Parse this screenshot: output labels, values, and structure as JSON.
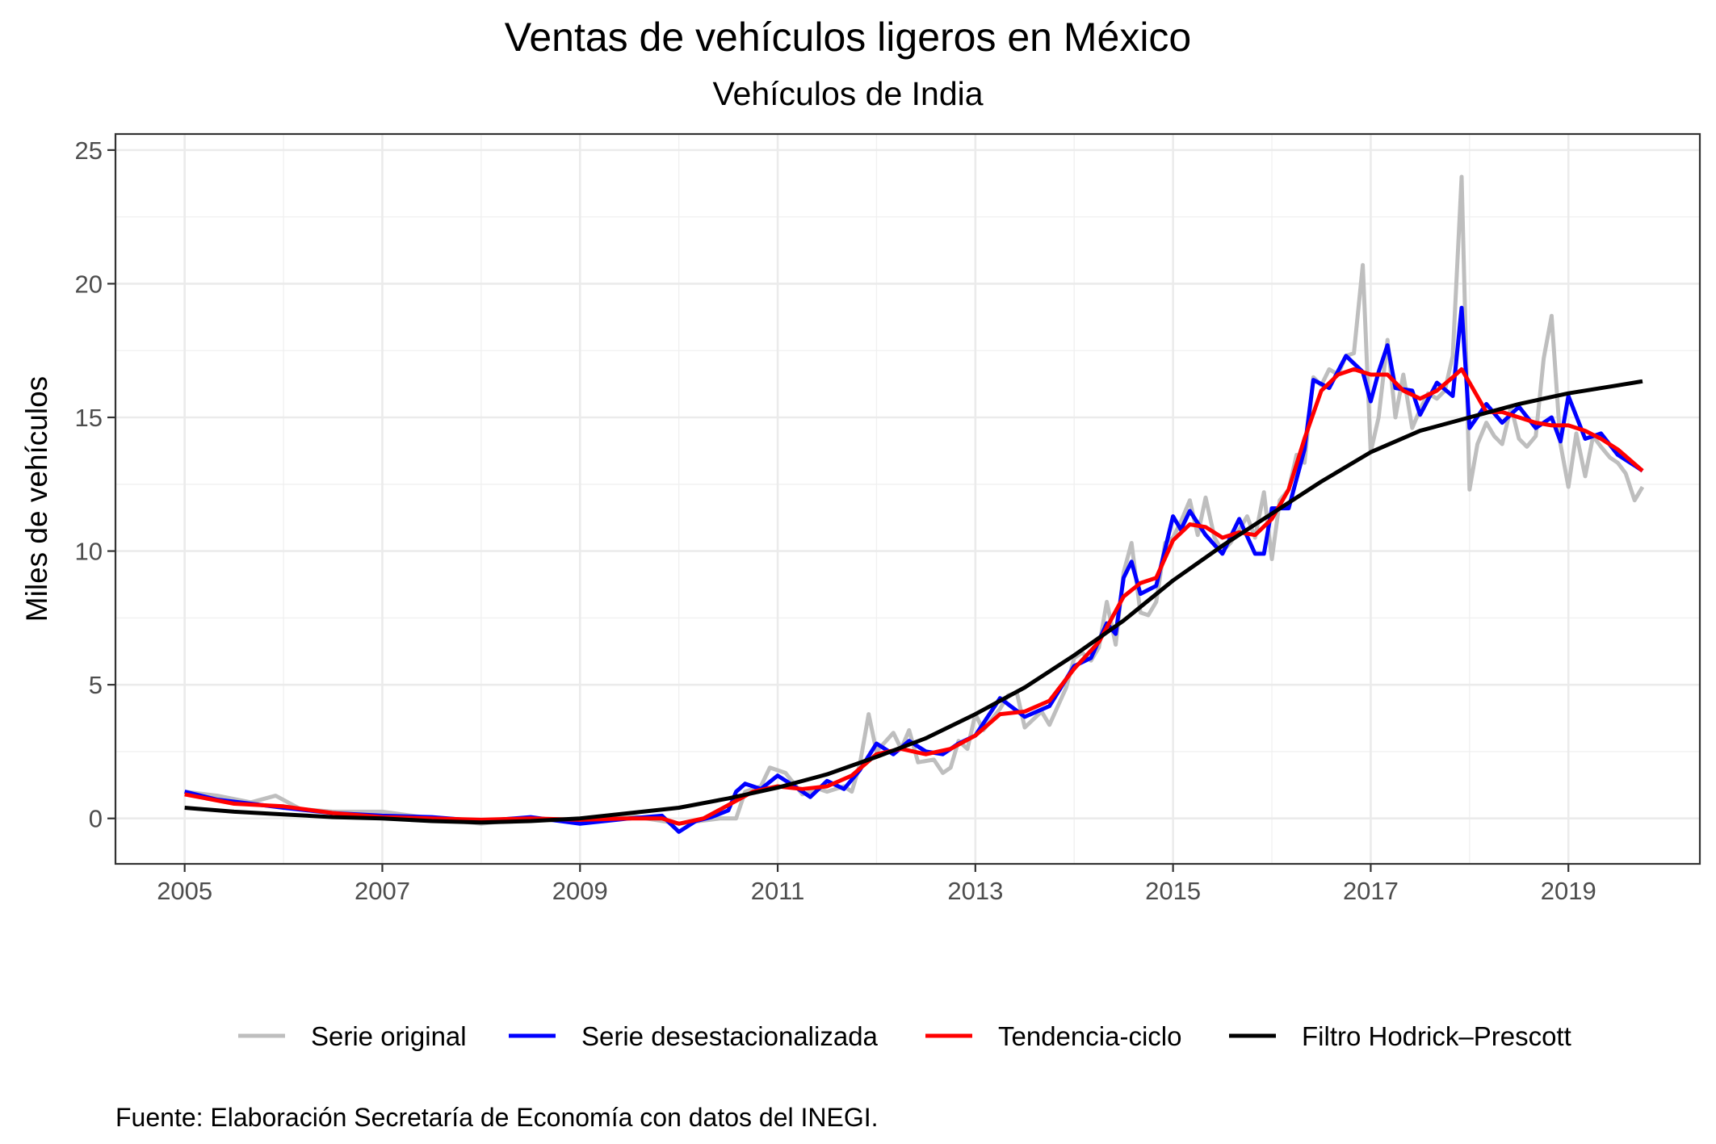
{
  "chart_data": {
    "type": "line",
    "title": "Ventas de vehículos ligeros en México",
    "subtitle": "Vehículos de India",
    "xlabel": "",
    "ylabel": "Miles de vehículos",
    "caption": "Fuente: Elaboración Secretaría de Economía con datos del INEGI.",
    "xlim": [
      2004.3,
      2020.33
    ],
    "ylim": [
      -1.7,
      25.6
    ],
    "x_ticks": [
      2005,
      2007,
      2009,
      2011,
      2013,
      2015,
      2017,
      2019
    ],
    "x_tick_labels": [
      "2005",
      "2007",
      "2009",
      "2011",
      "2013",
      "2015",
      "2017",
      "2019"
    ],
    "y_ticks": [
      0,
      5,
      10,
      15,
      20,
      25
    ],
    "y_tick_labels": [
      "0",
      "5",
      "10",
      "15",
      "20",
      "25"
    ],
    "grid": true,
    "legend_position": "bottom",
    "colors": {
      "original": "#bebebe",
      "desestacionalizada": "#0000ff",
      "tendencia": "#ff0000",
      "hp": "#000000"
    },
    "series": [
      {
        "name": "Serie original",
        "color": "#bebebe",
        "points": [
          [
            2005.0,
            1.0
          ],
          [
            2005.33,
            0.85
          ],
          [
            2005.67,
            0.6
          ],
          [
            2005.92,
            0.85
          ],
          [
            2006.17,
            0.35
          ],
          [
            2006.5,
            0.25
          ],
          [
            2007.0,
            0.25
          ],
          [
            2007.5,
            0.0
          ],
          [
            2008.0,
            -0.2
          ],
          [
            2008.5,
            0.0
          ],
          [
            2009.0,
            -0.15
          ],
          [
            2009.5,
            0.1
          ],
          [
            2010.0,
            -0.2
          ],
          [
            2010.42,
            0.0
          ],
          [
            2010.58,
            0.0
          ],
          [
            2010.67,
            1.0
          ],
          [
            2010.83,
            1.2
          ],
          [
            2010.92,
            1.9
          ],
          [
            2011.08,
            1.7
          ],
          [
            2011.25,
            0.9
          ],
          [
            2011.42,
            1.1
          ],
          [
            2011.5,
            1.0
          ],
          [
            2011.67,
            1.2
          ],
          [
            2011.75,
            1.0
          ],
          [
            2011.83,
            2.0
          ],
          [
            2011.92,
            3.9
          ],
          [
            2012.0,
            2.5
          ],
          [
            2012.17,
            3.2
          ],
          [
            2012.25,
            2.6
          ],
          [
            2012.33,
            3.3
          ],
          [
            2012.42,
            2.1
          ],
          [
            2012.58,
            2.2
          ],
          [
            2012.67,
            1.7
          ],
          [
            2012.75,
            1.9
          ],
          [
            2012.83,
            2.9
          ],
          [
            2012.92,
            2.6
          ],
          [
            2013.0,
            3.9
          ],
          [
            2013.08,
            3.3
          ],
          [
            2013.25,
            4.1
          ],
          [
            2013.33,
            4.6
          ],
          [
            2013.42,
            4.7
          ],
          [
            2013.5,
            3.4
          ],
          [
            2013.67,
            4.0
          ],
          [
            2013.75,
            3.5
          ],
          [
            2013.92,
            4.9
          ],
          [
            2014.0,
            6.0
          ],
          [
            2014.08,
            6.2
          ],
          [
            2014.17,
            5.9
          ],
          [
            2014.25,
            6.4
          ],
          [
            2014.33,
            8.1
          ],
          [
            2014.42,
            6.5
          ],
          [
            2014.5,
            9.2
          ],
          [
            2014.58,
            10.3
          ],
          [
            2014.67,
            7.7
          ],
          [
            2014.75,
            7.6
          ],
          [
            2014.83,
            8.1
          ],
          [
            2014.92,
            10.3
          ],
          [
            2015.0,
            10.5
          ],
          [
            2015.08,
            11.1
          ],
          [
            2015.17,
            11.9
          ],
          [
            2015.25,
            10.6
          ],
          [
            2015.33,
            12.0
          ],
          [
            2015.42,
            10.5
          ],
          [
            2015.5,
            10.0
          ],
          [
            2015.58,
            10.3
          ],
          [
            2015.67,
            10.8
          ],
          [
            2015.75,
            11.3
          ],
          [
            2015.83,
            10.5
          ],
          [
            2015.92,
            12.2
          ],
          [
            2016.0,
            9.7
          ],
          [
            2016.08,
            11.9
          ],
          [
            2016.17,
            12.3
          ],
          [
            2016.25,
            13.6
          ],
          [
            2016.33,
            13.3
          ],
          [
            2016.42,
            16.5
          ],
          [
            2016.5,
            16.2
          ],
          [
            2016.58,
            16.8
          ],
          [
            2016.67,
            16.6
          ],
          [
            2016.75,
            17.3
          ],
          [
            2016.83,
            17.4
          ],
          [
            2016.92,
            20.7
          ],
          [
            2017.0,
            13.7
          ],
          [
            2017.08,
            15.0
          ],
          [
            2017.17,
            17.9
          ],
          [
            2017.25,
            15.0
          ],
          [
            2017.33,
            16.6
          ],
          [
            2017.42,
            14.6
          ],
          [
            2017.5,
            15.3
          ],
          [
            2017.58,
            15.9
          ],
          [
            2017.67,
            15.7
          ],
          [
            2017.75,
            16.0
          ],
          [
            2017.83,
            17.3
          ],
          [
            2017.92,
            24.0
          ],
          [
            2018.0,
            12.3
          ],
          [
            2018.08,
            14.0
          ],
          [
            2018.17,
            14.8
          ],
          [
            2018.25,
            14.3
          ],
          [
            2018.33,
            14.0
          ],
          [
            2018.42,
            15.4
          ],
          [
            2018.5,
            14.2
          ],
          [
            2018.58,
            13.9
          ],
          [
            2018.67,
            14.3
          ],
          [
            2018.75,
            17.2
          ],
          [
            2018.83,
            18.8
          ],
          [
            2018.92,
            14.0
          ],
          [
            2019.0,
            12.4
          ],
          [
            2019.08,
            14.4
          ],
          [
            2019.17,
            12.8
          ],
          [
            2019.25,
            14.3
          ],
          [
            2019.33,
            13.9
          ],
          [
            2019.42,
            13.5
          ],
          [
            2019.5,
            13.3
          ],
          [
            2019.58,
            12.9
          ],
          [
            2019.67,
            11.9
          ],
          [
            2019.75,
            12.4
          ]
        ]
      },
      {
        "name": "Serie desestacionalizada",
        "color": "#0000ff",
        "points": [
          [
            2005.0,
            1.0
          ],
          [
            2005.33,
            0.7
          ],
          [
            2005.67,
            0.55
          ],
          [
            2006.0,
            0.4
          ],
          [
            2006.5,
            0.2
          ],
          [
            2007.0,
            0.1
          ],
          [
            2007.5,
            0.05
          ],
          [
            2008.0,
            -0.1
          ],
          [
            2008.5,
            0.05
          ],
          [
            2009.0,
            -0.2
          ],
          [
            2009.5,
            0.0
          ],
          [
            2009.83,
            0.1
          ],
          [
            2010.0,
            -0.5
          ],
          [
            2010.17,
            -0.1
          ],
          [
            2010.33,
            0.05
          ],
          [
            2010.5,
            0.3
          ],
          [
            2010.58,
            1.0
          ],
          [
            2010.67,
            1.3
          ],
          [
            2010.83,
            1.1
          ],
          [
            2011.0,
            1.6
          ],
          [
            2011.17,
            1.2
          ],
          [
            2011.33,
            0.8
          ],
          [
            2011.5,
            1.4
          ],
          [
            2011.67,
            1.1
          ],
          [
            2011.83,
            1.8
          ],
          [
            2012.0,
            2.8
          ],
          [
            2012.17,
            2.4
          ],
          [
            2012.33,
            2.9
          ],
          [
            2012.5,
            2.5
          ],
          [
            2012.67,
            2.4
          ],
          [
            2012.83,
            2.8
          ],
          [
            2013.0,
            3.1
          ],
          [
            2013.25,
            4.5
          ],
          [
            2013.5,
            3.8
          ],
          [
            2013.75,
            4.2
          ],
          [
            2014.0,
            5.7
          ],
          [
            2014.17,
            6.0
          ],
          [
            2014.33,
            7.3
          ],
          [
            2014.42,
            6.9
          ],
          [
            2014.5,
            9.0
          ],
          [
            2014.58,
            9.6
          ],
          [
            2014.67,
            8.4
          ],
          [
            2014.83,
            8.7
          ],
          [
            2015.0,
            11.3
          ],
          [
            2015.08,
            10.8
          ],
          [
            2015.17,
            11.5
          ],
          [
            2015.33,
            10.6
          ],
          [
            2015.5,
            9.9
          ],
          [
            2015.67,
            11.2
          ],
          [
            2015.83,
            9.9
          ],
          [
            2015.92,
            9.9
          ],
          [
            2016.0,
            11.6
          ],
          [
            2016.17,
            11.6
          ],
          [
            2016.33,
            13.8
          ],
          [
            2016.42,
            16.4
          ],
          [
            2016.58,
            16.1
          ],
          [
            2016.75,
            17.3
          ],
          [
            2016.92,
            16.7
          ],
          [
            2017.0,
            15.6
          ],
          [
            2017.08,
            16.7
          ],
          [
            2017.17,
            17.7
          ],
          [
            2017.25,
            16.1
          ],
          [
            2017.42,
            16.0
          ],
          [
            2017.5,
            15.1
          ],
          [
            2017.67,
            16.3
          ],
          [
            2017.83,
            15.8
          ],
          [
            2017.92,
            19.1
          ],
          [
            2018.0,
            14.6
          ],
          [
            2018.17,
            15.5
          ],
          [
            2018.33,
            14.8
          ],
          [
            2018.5,
            15.4
          ],
          [
            2018.67,
            14.6
          ],
          [
            2018.83,
            15.0
          ],
          [
            2018.92,
            14.1
          ],
          [
            2019.0,
            15.8
          ],
          [
            2019.17,
            14.2
          ],
          [
            2019.33,
            14.4
          ],
          [
            2019.5,
            13.6
          ],
          [
            2019.67,
            13.2
          ],
          [
            2019.75,
            13.0
          ]
        ]
      },
      {
        "name": "Tendencia-ciclo",
        "color": "#ff0000",
        "points": [
          [
            2005.0,
            0.9
          ],
          [
            2005.5,
            0.55
          ],
          [
            2006.0,
            0.45
          ],
          [
            2006.5,
            0.2
          ],
          [
            2007.0,
            0.05
          ],
          [
            2007.5,
            0.0
          ],
          [
            2008.0,
            -0.05
          ],
          [
            2008.5,
            0.0
          ],
          [
            2009.0,
            -0.05
          ],
          [
            2009.5,
            0.0
          ],
          [
            2009.83,
            0.0
          ],
          [
            2010.0,
            -0.2
          ],
          [
            2010.25,
            0.0
          ],
          [
            2010.5,
            0.5
          ],
          [
            2010.75,
            1.0
          ],
          [
            2011.0,
            1.2
          ],
          [
            2011.25,
            1.1
          ],
          [
            2011.5,
            1.2
          ],
          [
            2011.75,
            1.6
          ],
          [
            2012.0,
            2.4
          ],
          [
            2012.25,
            2.6
          ],
          [
            2012.5,
            2.4
          ],
          [
            2012.75,
            2.6
          ],
          [
            2013.0,
            3.1
          ],
          [
            2013.25,
            3.9
          ],
          [
            2013.5,
            4.0
          ],
          [
            2013.75,
            4.4
          ],
          [
            2014.0,
            5.6
          ],
          [
            2014.25,
            6.6
          ],
          [
            2014.5,
            8.3
          ],
          [
            2014.67,
            8.8
          ],
          [
            2014.83,
            9.0
          ],
          [
            2015.0,
            10.4
          ],
          [
            2015.17,
            11.0
          ],
          [
            2015.33,
            10.9
          ],
          [
            2015.5,
            10.5
          ],
          [
            2015.67,
            10.7
          ],
          [
            2015.83,
            10.6
          ],
          [
            2016.0,
            11.2
          ],
          [
            2016.17,
            12.3
          ],
          [
            2016.33,
            14.2
          ],
          [
            2016.5,
            16.0
          ],
          [
            2016.67,
            16.6
          ],
          [
            2016.83,
            16.8
          ],
          [
            2017.0,
            16.6
          ],
          [
            2017.17,
            16.6
          ],
          [
            2017.33,
            16.0
          ],
          [
            2017.5,
            15.7
          ],
          [
            2017.67,
            16.0
          ],
          [
            2017.83,
            16.5
          ],
          [
            2017.92,
            16.8
          ],
          [
            2018.0,
            16.3
          ],
          [
            2018.17,
            15.2
          ],
          [
            2018.33,
            15.2
          ],
          [
            2018.5,
            15.0
          ],
          [
            2018.67,
            14.8
          ],
          [
            2018.83,
            14.7
          ],
          [
            2019.0,
            14.7
          ],
          [
            2019.17,
            14.5
          ],
          [
            2019.33,
            14.2
          ],
          [
            2019.5,
            13.8
          ],
          [
            2019.75,
            13.0
          ]
        ]
      },
      {
        "name": "Filtro Hodrick–Prescott",
        "color": "#000000",
        "points": [
          [
            2005.0,
            0.4
          ],
          [
            2005.5,
            0.25
          ],
          [
            2006.0,
            0.15
          ],
          [
            2006.5,
            0.05
          ],
          [
            2007.0,
            0.0
          ],
          [
            2007.5,
            -0.1
          ],
          [
            2008.0,
            -0.15
          ],
          [
            2008.5,
            -0.1
          ],
          [
            2009.0,
            0.0
          ],
          [
            2009.5,
            0.2
          ],
          [
            2010.0,
            0.4
          ],
          [
            2010.5,
            0.75
          ],
          [
            2011.0,
            1.15
          ],
          [
            2011.5,
            1.65
          ],
          [
            2012.0,
            2.3
          ],
          [
            2012.5,
            3.0
          ],
          [
            2013.0,
            3.9
          ],
          [
            2013.5,
            4.9
          ],
          [
            2014.0,
            6.1
          ],
          [
            2014.5,
            7.4
          ],
          [
            2015.0,
            8.9
          ],
          [
            2015.5,
            10.2
          ],
          [
            2016.0,
            11.4
          ],
          [
            2016.5,
            12.6
          ],
          [
            2017.0,
            13.7
          ],
          [
            2017.5,
            14.5
          ],
          [
            2018.0,
            15.0
          ],
          [
            2018.5,
            15.5
          ],
          [
            2019.0,
            15.9
          ],
          [
            2019.5,
            16.2
          ],
          [
            2019.75,
            16.35
          ]
        ]
      }
    ]
  }
}
